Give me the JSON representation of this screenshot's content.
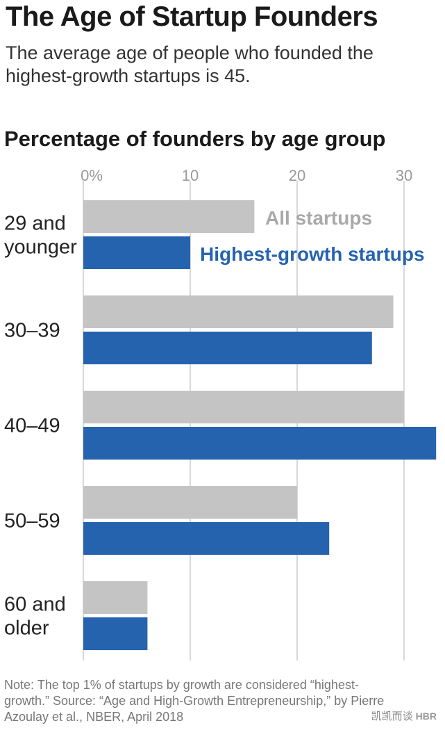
{
  "title": "The Age of Startup Founders",
  "subtitle": "The average age of people who founded the highest-growth startups is 45.",
  "note": "Note: The top 1% of startups by growth are considered “highest-growth.” Source: “Age and High-Growth Entrepreneurship,” by Pierre Azoulay et al., NBER, April 2018",
  "watermark": {
    "text": "凯凯而谈",
    "logo": "HBR"
  },
  "colors": {
    "all_startups": "#c4c4c4",
    "highest_growth": "#2563ae",
    "grid": "#cccccc",
    "tick_text": "#999999"
  },
  "chart_data": {
    "type": "bar",
    "orientation": "horizontal",
    "title": "Percentage of founders by age group",
    "categories": [
      [
        "29 and",
        "younger"
      ],
      [
        "30–39"
      ],
      [
        "40–49"
      ],
      [
        "50–59"
      ],
      [
        "60 and",
        "older"
      ]
    ],
    "series": [
      {
        "name": "All startups",
        "values": [
          16,
          29,
          30,
          20,
          6
        ]
      },
      {
        "name": "Highest-growth startups",
        "values": [
          10,
          27,
          33,
          23,
          6
        ]
      }
    ],
    "xticks": [
      "0%",
      "10",
      "20",
      "30"
    ],
    "xtick_values": [
      0,
      10,
      20,
      30
    ],
    "xlim": [
      0,
      33
    ],
    "grid": true,
    "legend": "inline, beside first category bars"
  }
}
